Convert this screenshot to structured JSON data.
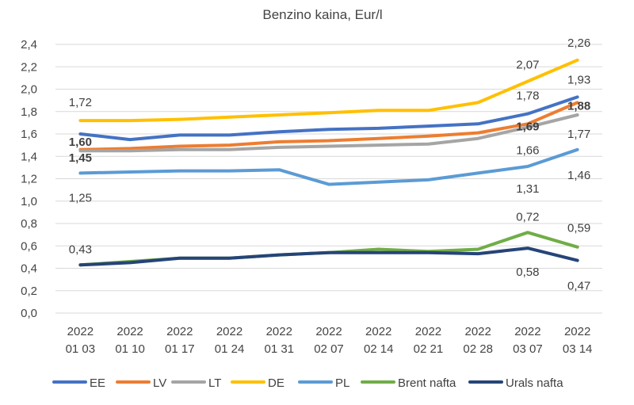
{
  "chart_data": {
    "type": "line",
    "title": "Benzino kaina, Eur/l",
    "xlabel": "",
    "ylabel": "",
    "ylim": [
      0,
      2.4
    ],
    "ytick_step": 0.2,
    "ytick_labels": [
      "0,0",
      "0,2",
      "0,4",
      "0,6",
      "0,8",
      "1,0",
      "1,2",
      "1,4",
      "1,6",
      "1,8",
      "2,0",
      "2,2",
      "2,4"
    ],
    "grid": true,
    "legend_position": "bottom",
    "categories": [
      [
        "2022",
        "01 03"
      ],
      [
        "2022",
        "01 10"
      ],
      [
        "2022",
        "01 17"
      ],
      [
        "2022",
        "01 24"
      ],
      [
        "2022",
        "01 31"
      ],
      [
        "2022",
        "02 07"
      ],
      [
        "2022",
        "02 14"
      ],
      [
        "2022",
        "02 21"
      ],
      [
        "2022",
        "02 28"
      ],
      [
        "2022",
        "03 07"
      ],
      [
        "2022",
        "03 14"
      ]
    ],
    "series": [
      {
        "name": "EE",
        "color": "#4472C4",
        "values": [
          1.6,
          1.55,
          1.59,
          1.59,
          1.62,
          1.64,
          1.65,
          1.67,
          1.69,
          1.78,
          1.93
        ]
      },
      {
        "name": "LV",
        "color": "#ED7D31",
        "values": [
          1.46,
          1.47,
          1.49,
          1.5,
          1.53,
          1.54,
          1.56,
          1.58,
          1.61,
          1.69,
          1.88
        ]
      },
      {
        "name": "LT",
        "color": "#A5A5A5",
        "values": [
          1.45,
          1.45,
          1.46,
          1.46,
          1.48,
          1.49,
          1.5,
          1.51,
          1.56,
          1.66,
          1.77
        ]
      },
      {
        "name": "DE",
        "color": "#FFC000",
        "values": [
          1.72,
          1.72,
          1.73,
          1.75,
          1.77,
          1.79,
          1.81,
          1.81,
          1.88,
          2.07,
          2.26
        ]
      },
      {
        "name": "PL",
        "color": "#5B9BD5",
        "values": [
          1.25,
          1.26,
          1.27,
          1.27,
          1.28,
          1.15,
          1.17,
          1.19,
          1.25,
          1.31,
          1.46
        ]
      },
      {
        "name": "Brent nafta",
        "color": "#70AD47",
        "values": [
          0.43,
          0.46,
          0.49,
          0.49,
          0.52,
          0.54,
          0.57,
          0.55,
          0.57,
          0.72,
          0.59
        ]
      },
      {
        "name": "Urals nafta",
        "color": "#264478",
        "values": [
          0.43,
          0.45,
          0.49,
          0.49,
          0.52,
          0.54,
          0.54,
          0.54,
          0.53,
          0.58,
          0.47
        ]
      }
    ],
    "data_labels": [
      {
        "series": 3,
        "index": 0,
        "text": "1,72",
        "bold": false
      },
      {
        "series": 0,
        "index": 0,
        "text": "1,60",
        "bold": true
      },
      {
        "series": 2,
        "index": 0,
        "text": "1,45",
        "bold": true
      },
      {
        "series": 4,
        "index": 0,
        "text": "1,25",
        "bold": false
      },
      {
        "series": 5,
        "index": 0,
        "text": "0,43",
        "bold": false
      },
      {
        "series": 3,
        "index": 9,
        "text": "2,07",
        "bold": false
      },
      {
        "series": 0,
        "index": 9,
        "text": "1,78",
        "bold": false
      },
      {
        "series": 1,
        "index": 9,
        "text": "1,69",
        "bold": true
      },
      {
        "series": 2,
        "index": 9,
        "text": "1,66",
        "bold": false
      },
      {
        "series": 4,
        "index": 9,
        "text": "1,31",
        "bold": false
      },
      {
        "series": 5,
        "index": 9,
        "text": "0,72",
        "bold": false
      },
      {
        "series": 6,
        "index": 9,
        "text": "0,58",
        "bold": false
      },
      {
        "series": 3,
        "index": 10,
        "text": "2,26",
        "bold": false
      },
      {
        "series": 0,
        "index": 10,
        "text": "1,93",
        "bold": false
      },
      {
        "series": 1,
        "index": 10,
        "text": "1,88",
        "bold": true
      },
      {
        "series": 2,
        "index": 10,
        "text": "1,77",
        "bold": false
      },
      {
        "series": 4,
        "index": 10,
        "text": "1,46",
        "bold": false
      },
      {
        "series": 5,
        "index": 10,
        "text": "0,59",
        "bold": false
      },
      {
        "series": 6,
        "index": 10,
        "text": "0,47",
        "bold": false
      }
    ]
  }
}
